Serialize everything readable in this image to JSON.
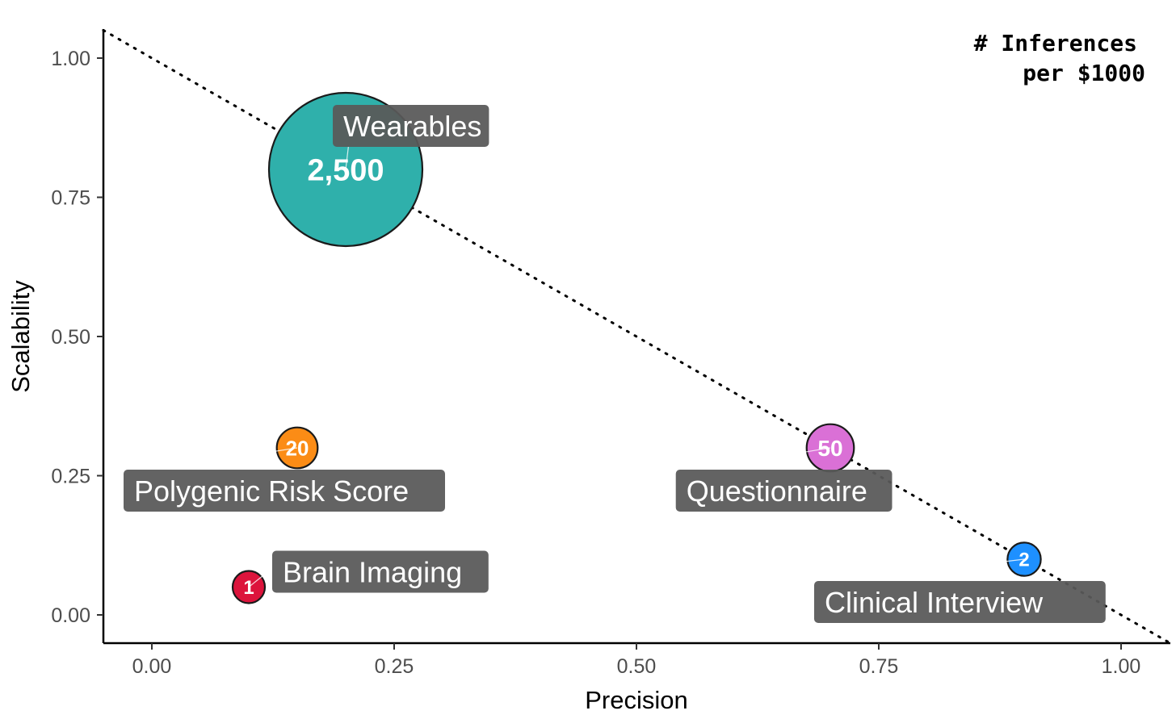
{
  "chart_data": {
    "type": "scatter",
    "xlabel": "Precision",
    "ylabel": "Scalability",
    "xlim": [
      -0.05,
      1.05
    ],
    "ylim": [
      -0.05,
      1.05
    ],
    "x_ticks": [
      0.0,
      0.25,
      0.5,
      0.75,
      1.0
    ],
    "y_ticks": [
      0.0,
      0.25,
      0.5,
      0.75,
      1.0
    ],
    "x_tick_labels": [
      "0.00",
      "0.25",
      "0.50",
      "0.75",
      "1.00"
    ],
    "y_tick_labels": [
      "0.00",
      "0.25",
      "0.50",
      "0.75",
      "1.00"
    ],
    "grid": false,
    "size_legend": {
      "title_line1": "# Inferences",
      "title_line2": "per $1000",
      "placement": "top-right"
    },
    "reference_line": {
      "style": "dotted",
      "from": [
        -0.05,
        1.05
      ],
      "to": [
        1.05,
        -0.05
      ]
    },
    "points": [
      {
        "name": "Wearables",
        "x": 0.2,
        "y": 0.8,
        "inferences": 2500,
        "value_label": "2,500",
        "color": "#2fb0ab",
        "label_side": "above-right"
      },
      {
        "name": "Polygenic Risk Score",
        "x": 0.15,
        "y": 0.3,
        "inferences": 20,
        "value_label": "20",
        "color": "#fb8c16",
        "label_side": "below"
      },
      {
        "name": "Questionnaire",
        "x": 0.7,
        "y": 0.3,
        "inferences": 50,
        "value_label": "50",
        "color": "#da70d6",
        "label_side": "below-left"
      },
      {
        "name": "Brain Imaging",
        "x": 0.1,
        "y": 0.05,
        "inferences": 1,
        "value_label": "1",
        "color": "#dc143c",
        "label_side": "right"
      },
      {
        "name": "Clinical Interview",
        "x": 0.9,
        "y": 0.1,
        "inferences": 2,
        "value_label": "2",
        "color": "#1e90ff",
        "label_side": "below-left"
      }
    ],
    "colors": {
      "label_box": "#595959",
      "label_text": "#ffffff",
      "axis": "#000000",
      "tick_text": "#4d4d4d"
    }
  }
}
